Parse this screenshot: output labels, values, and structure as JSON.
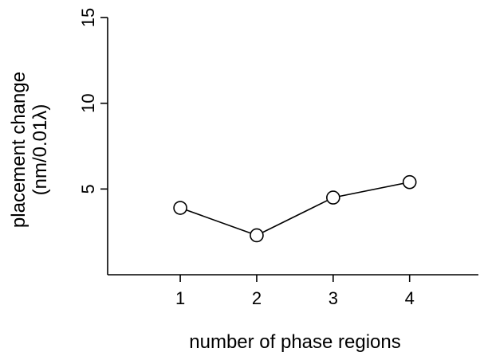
{
  "chart_data": {
    "type": "line",
    "title": "",
    "xlabel": "number of phase regions",
    "ylabel_line1": "placement change",
    "ylabel_line2": "(nm/0.01λ)",
    "x": [
      1,
      2,
      3,
      4
    ],
    "x_ticks": [
      "1",
      "2",
      "3",
      "4"
    ],
    "xlim": [
      0.05,
      4.9
    ],
    "y_ticks": [
      "5",
      "10",
      "15"
    ],
    "y_tick_values": [
      5,
      10,
      15
    ],
    "ylim": [
      0,
      15
    ],
    "grid": false,
    "legend": "none",
    "series": [
      {
        "values": [
          3.9,
          2.3,
          4.5,
          5.4
        ]
      }
    ],
    "colors": {
      "line": "#000000",
      "marker_fill": "#ffffff",
      "marker_stroke": "#000000"
    }
  }
}
